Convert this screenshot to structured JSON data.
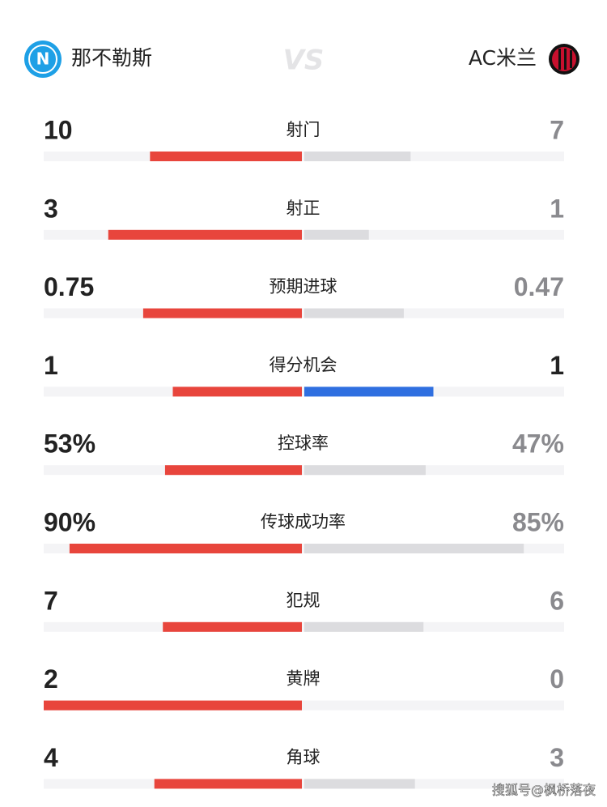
{
  "header": {
    "home": "那不勒斯",
    "vs": "VS",
    "away": "AC米兰"
  },
  "stats": [
    {
      "label": "射门",
      "home": 10,
      "away": 7,
      "home_color": "#e8453c",
      "away_color": "#dcdcdf"
    },
    {
      "label": "射正",
      "home": 3,
      "away": 1,
      "home_color": "#e8453c",
      "away_color": "#dcdcdf"
    },
    {
      "label": "预期进球",
      "home": 0.75,
      "away": 0.47,
      "home_color": "#e8453c",
      "away_color": "#dcdcdf"
    },
    {
      "label": "得分机会",
      "home": 1,
      "away": 1,
      "home_color": "#e8453c",
      "away_color": "#2f6fe0"
    },
    {
      "label": "控球率",
      "home": 53,
      "away": 47,
      "home_label": "53%",
      "away_label": "47%",
      "home_color": "#e8453c",
      "away_color": "#dcdcdf"
    },
    {
      "label": "传球成功率",
      "home": 90,
      "away": 85,
      "home_label": "90%",
      "away_label": "85%",
      "home_color": "#e8453c",
      "away_color": "#dcdcdf"
    },
    {
      "label": "犯规",
      "home": 7,
      "away": 6,
      "home_color": "#e8453c",
      "away_color": "#dcdcdf"
    },
    {
      "label": "黄牌",
      "home": 2,
      "away": 0,
      "home_color": "#e8453c",
      "away_color": "#dcdcdf"
    },
    {
      "label": "角球",
      "home": 4,
      "away": 3,
      "home_color": "#e8453c",
      "away_color": "#dcdcdf"
    }
  ],
  "watermark": "搜狐号@枫桥落夜"
}
